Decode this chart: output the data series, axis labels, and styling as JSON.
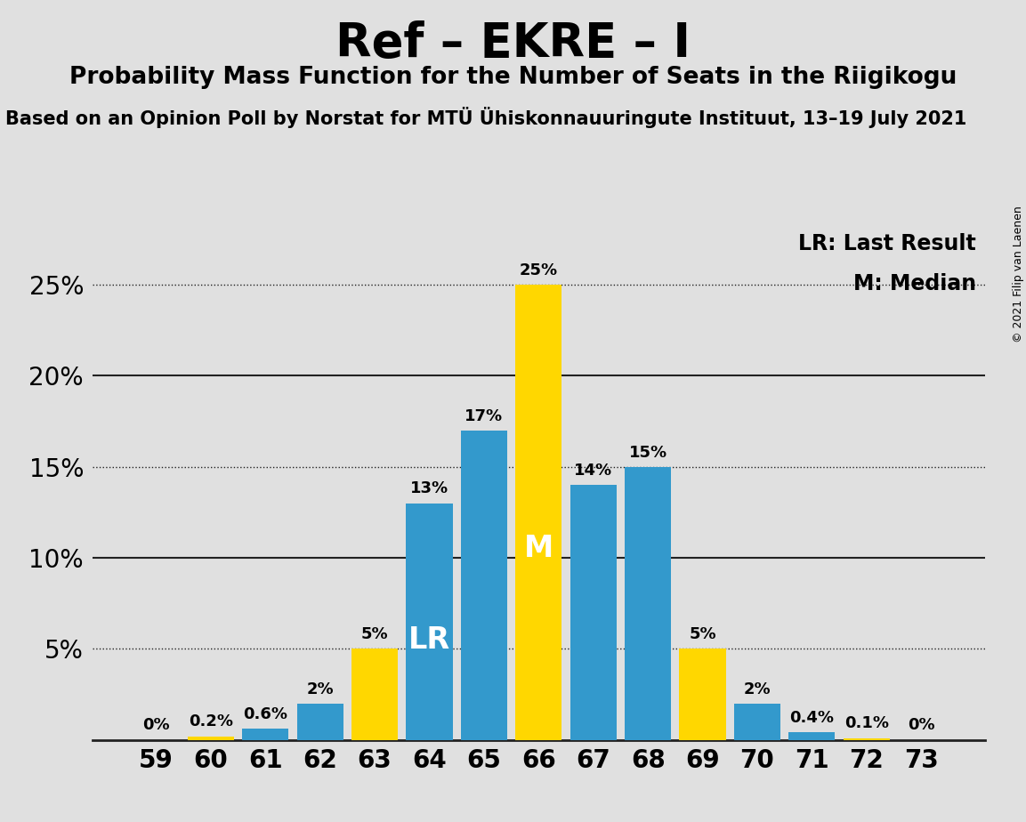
{
  "title": "Ref – EKRE – I",
  "subtitle": "Probability Mass Function for the Number of Seats in the Riigikogu",
  "source": "Based on an Opinion Poll by Norstat for MTÜ Ühiskonnauuringute Instituut, 13–19 July 2021",
  "copyright": "© 2021 Filip van Laenen",
  "seats": [
    59,
    60,
    61,
    62,
    63,
    64,
    65,
    66,
    67,
    68,
    69,
    70,
    71,
    72,
    73
  ],
  "values": [
    0.0,
    0.2,
    0.6,
    2.0,
    5.0,
    13.0,
    17.0,
    25.0,
    14.0,
    15.0,
    5.0,
    2.0,
    0.4,
    0.1,
    0.0
  ],
  "labels": [
    "0%",
    "0.2%",
    "0.6%",
    "2%",
    "5%",
    "13%",
    "17%",
    "25%",
    "14%",
    "15%",
    "5%",
    "2%",
    "0.4%",
    "0.1%",
    "0%"
  ],
  "colors": [
    "#3399cc",
    "#FFD700",
    "#3399cc",
    "#3399cc",
    "#FFD700",
    "#3399cc",
    "#3399cc",
    "#FFD700",
    "#3399cc",
    "#3399cc",
    "#FFD700",
    "#3399cc",
    "#3399cc",
    "#FFD700",
    "#3399cc"
  ],
  "LR_seat": 64,
  "Median_seat": 66,
  "LR_label": "LR",
  "Median_label": "M",
  "legend_LR": "LR: Last Result",
  "legend_M": "M: Median",
  "yticks": [
    0,
    5,
    10,
    15,
    20,
    25
  ],
  "ylim": [
    0,
    28
  ],
  "background_color": "#e0e0e0",
  "plot_background": "#e0e0e0",
  "grid_color": "#222222",
  "title_fontsize": 38,
  "subtitle_fontsize": 19,
  "source_fontsize": 15
}
